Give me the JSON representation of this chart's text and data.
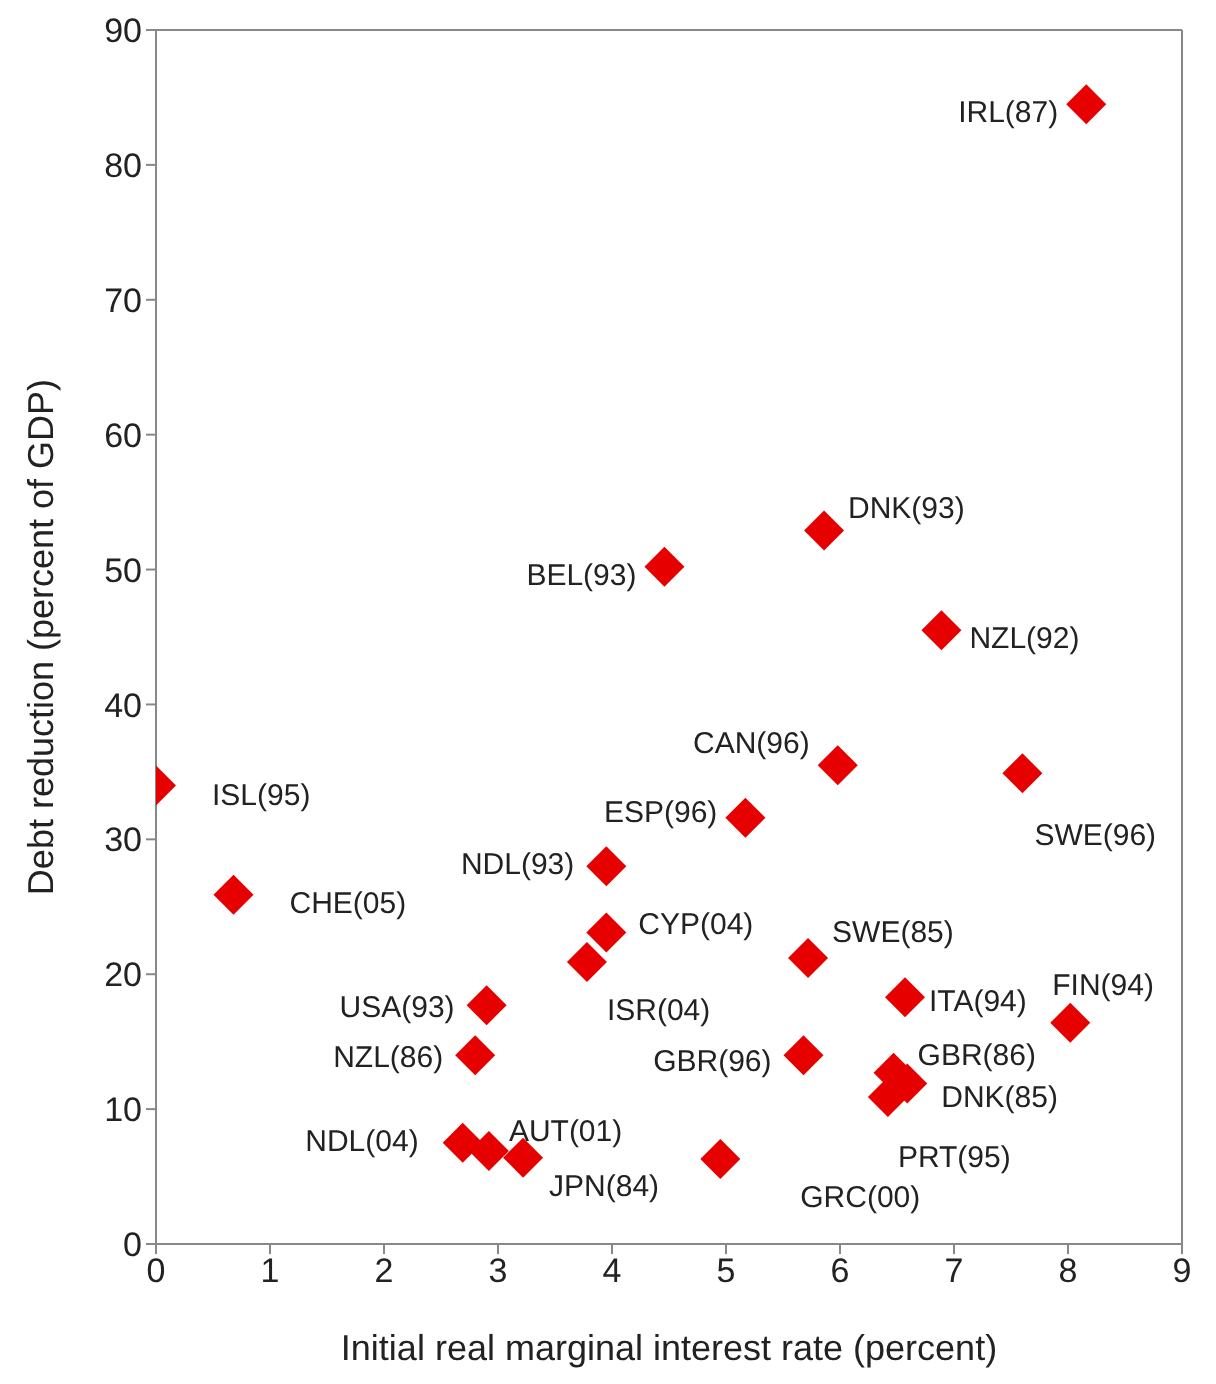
{
  "chart_data": {
    "type": "scatter",
    "xlabel": "Initial real marginal interest rate (percent)",
    "ylabel": "Debt reduction (percent of GDP)",
    "x": [
      8.16,
      5.86,
      4.46,
      6.89,
      5.98,
      7.6,
      0,
      5.17,
      3.95,
      0.68,
      3.95,
      3.78,
      5.72,
      6.57,
      8.02,
      2.9,
      2.8,
      5.68,
      6.47,
      6.59,
      6.42,
      2.69,
      2.92,
      3.22,
      4.95
    ],
    "values": [
      84.5,
      52.9,
      50.2,
      45.5,
      35.5,
      34.9,
      34.0,
      31.6,
      28.0,
      25.9,
      23.1,
      20.9,
      21.2,
      18.3,
      16.4,
      17.7,
      14.0,
      14.0,
      12.7,
      11.9,
      10.9,
      7.5,
      6.9,
      6.4,
      6.3
    ],
    "color": "#e60000",
    "marker": "diamond",
    "xlim": [
      0,
      9
    ],
    "xticks": [
      0,
      1,
      2,
      3,
      4,
      5,
      6,
      7,
      8,
      9
    ],
    "ylim": [
      0,
      90
    ],
    "yticks": [
      0,
      10,
      20,
      30,
      40,
      50,
      60,
      70,
      80,
      90
    ],
    "annotations": [
      {
        "text": "IRL(87)",
        "x": 8.16,
        "y": 84.5
      },
      {
        "text": "DNK(93)",
        "x": 5.86,
        "y": 52.9
      },
      {
        "text": "BEL(93)",
        "x": 4.46,
        "y": 50.2
      },
      {
        "text": "NZL(92)",
        "x": 6.89,
        "y": 45.5
      },
      {
        "text": "CAN(96)",
        "x": 5.98,
        "y": 35.5
      },
      {
        "text": "SWE(96)",
        "x": 7.6,
        "y": 34.9
      },
      {
        "text": "ISL(95)",
        "x": 0,
        "y": 34.0
      },
      {
        "text": "ESP(96)",
        "x": 5.17,
        "y": 31.6
      },
      {
        "text": "NDL(93)",
        "x": 3.95,
        "y": 28.0
      },
      {
        "text": "CHE(05)",
        "x": 0.68,
        "y": 25.9
      },
      {
        "text": "CYP(04)",
        "x": 3.95,
        "y": 23.1
      },
      {
        "text": "ISR(04)",
        "x": 3.78,
        "y": 20.9
      },
      {
        "text": "SWE(85)",
        "x": 5.72,
        "y": 21.2
      },
      {
        "text": "ITA(94)",
        "x": 6.57,
        "y": 18.3
      },
      {
        "text": "FIN(94)",
        "x": 8.02,
        "y": 16.4
      },
      {
        "text": "USA(93)",
        "x": 2.9,
        "y": 17.7
      },
      {
        "text": "NZL(86)",
        "x": 2.8,
        "y": 14.0
      },
      {
        "text": "GBR(96)",
        "x": 5.68,
        "y": 14.0
      },
      {
        "text": "GBR(86)",
        "x": 6.47,
        "y": 12.7
      },
      {
        "text": "DNK(85)",
        "x": 6.59,
        "y": 11.9
      },
      {
        "text": "PRT(95)",
        "x": 6.42,
        "y": 10.9
      },
      {
        "text": "NDL(04)",
        "x": 2.69,
        "y": 7.5
      },
      {
        "text": "AUT(01)",
        "x": 2.92,
        "y": 6.9
      },
      {
        "text": "JPN(84)",
        "x": 3.22,
        "y": 6.4
      },
      {
        "text": "GRC(00)",
        "x": 4.95,
        "y": 6.3
      }
    ]
  }
}
